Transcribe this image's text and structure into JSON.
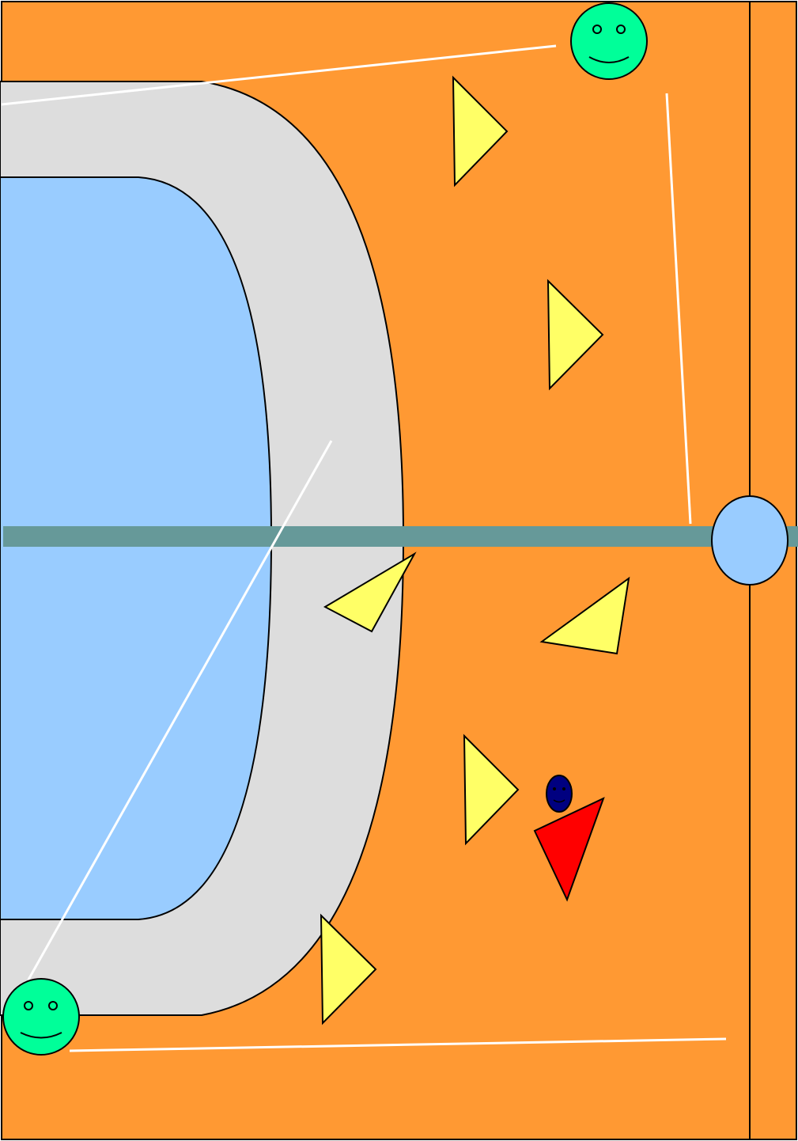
{
  "colors": {
    "field": "#ff9933",
    "ring": "#dddddd",
    "pool": "#99ccff",
    "bar": "#669999",
    "net_post": "#99ccff",
    "cone": "#ffff66",
    "red_cone": "#ff0000",
    "player_face": "#00ff99",
    "coach_face": "#000080",
    "pass_line": "#ffffff",
    "outline": "#000000"
  },
  "icons": {
    "player": "smiley-face-icon",
    "coach": "small-smiley-face-icon",
    "cone": "triangle-cone-icon",
    "post": "circle-post-icon"
  }
}
